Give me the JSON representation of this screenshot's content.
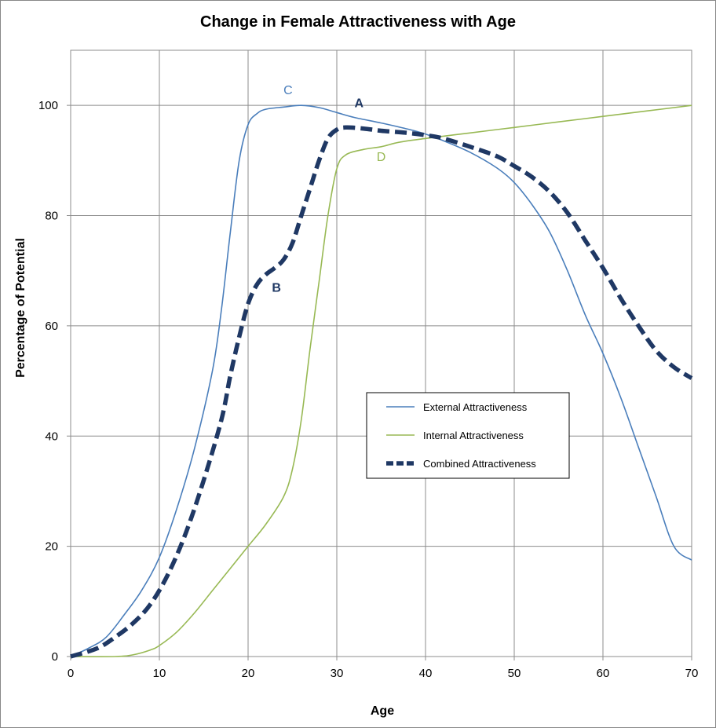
{
  "chart_data": {
    "type": "line",
    "title": "Change in Female Attractiveness with Age",
    "xlabel": "Age",
    "ylabel": "Percentage of Potential",
    "xlim": [
      0,
      70
    ],
    "ylim": [
      0,
      110
    ],
    "x_ticks": [
      0,
      10,
      20,
      30,
      40,
      50,
      60,
      70
    ],
    "y_ticks": [
      0,
      20,
      40,
      60,
      80,
      100
    ],
    "grid": true,
    "legend_position": "center-right",
    "series": [
      {
        "name": "External Attractiveness",
        "color": "#4a7ebb",
        "style": "solid",
        "points": [
          [
            0,
            0
          ],
          [
            2,
            1.5
          ],
          [
            4,
            3.5
          ],
          [
            6,
            7.5
          ],
          [
            8,
            12
          ],
          [
            10,
            18
          ],
          [
            12,
            27
          ],
          [
            14,
            38
          ],
          [
            16,
            52
          ],
          [
            17,
            63
          ],
          [
            18,
            77
          ],
          [
            19,
            90
          ],
          [
            20,
            96.5
          ],
          [
            21,
            98.5
          ],
          [
            22,
            99.3
          ],
          [
            24,
            99.7
          ],
          [
            26,
            100
          ],
          [
            28,
            99.6
          ],
          [
            30,
            98.7
          ],
          [
            32,
            97.8
          ],
          [
            35,
            96.8
          ],
          [
            38,
            95.7
          ],
          [
            40,
            94.8
          ],
          [
            42,
            93.6
          ],
          [
            45,
            91.5
          ],
          [
            48,
            88.7
          ],
          [
            50,
            86
          ],
          [
            52,
            82
          ],
          [
            54,
            77
          ],
          [
            56,
            70
          ],
          [
            58,
            62
          ],
          [
            60,
            55
          ],
          [
            62,
            47
          ],
          [
            64,
            38
          ],
          [
            66,
            29
          ],
          [
            68,
            20
          ],
          [
            70,
            17.5
          ]
        ]
      },
      {
        "name": "Internal Attractiveness",
        "color": "#98b954",
        "style": "solid",
        "points": [
          [
            0,
            0
          ],
          [
            5,
            0
          ],
          [
            7,
            0.3
          ],
          [
            9,
            1.2
          ],
          [
            10,
            2
          ],
          [
            12,
            4.5
          ],
          [
            14,
            8
          ],
          [
            16,
            12
          ],
          [
            18,
            16
          ],
          [
            20,
            20
          ],
          [
            22,
            24
          ],
          [
            24,
            29
          ],
          [
            25,
            34
          ],
          [
            26,
            43
          ],
          [
            27,
            56
          ],
          [
            28,
            68
          ],
          [
            29,
            80
          ],
          [
            30,
            88.5
          ],
          [
            31,
            91
          ],
          [
            33,
            92
          ],
          [
            35,
            92.5
          ],
          [
            37,
            93.3
          ],
          [
            40,
            94
          ],
          [
            45,
            95
          ],
          [
            50,
            96
          ],
          [
            55,
            97
          ],
          [
            60,
            98
          ],
          [
            65,
            99
          ],
          [
            70,
            100
          ]
        ]
      },
      {
        "name": "Combined Attractiveness",
        "color": "#1f3864",
        "style": "dashed",
        "points": [
          [
            0,
            0
          ],
          [
            3,
            1.5
          ],
          [
            5,
            3.5
          ],
          [
            7,
            6
          ],
          [
            9,
            9.5
          ],
          [
            11,
            15
          ],
          [
            13,
            22.5
          ],
          [
            15,
            32
          ],
          [
            17,
            43
          ],
          [
            18,
            51
          ],
          [
            19,
            58
          ],
          [
            20,
            64
          ],
          [
            21,
            67.5
          ],
          [
            22,
            69.3
          ],
          [
            23,
            70.5
          ],
          [
            24,
            72
          ],
          [
            25,
            75
          ],
          [
            26,
            80
          ],
          [
            27,
            85
          ],
          [
            28,
            90
          ],
          [
            29,
            94
          ],
          [
            30,
            95.6
          ],
          [
            31,
            96
          ],
          [
            33,
            95.8
          ],
          [
            35,
            95.4
          ],
          [
            38,
            95
          ],
          [
            40,
            94.6
          ],
          [
            42,
            94
          ],
          [
            45,
            92.5
          ],
          [
            48,
            90.8
          ],
          [
            50,
            89
          ],
          [
            52,
            87
          ],
          [
            54,
            84.3
          ],
          [
            56,
            80.5
          ],
          [
            58,
            75.5
          ],
          [
            60,
            70.5
          ],
          [
            62,
            65
          ],
          [
            64,
            60
          ],
          [
            66,
            55.5
          ],
          [
            68,
            52.5
          ],
          [
            70,
            50.5
          ]
        ]
      }
    ],
    "annotations": [
      {
        "text": "C",
        "x": 24.5,
        "y": 102,
        "color": "#4a7ebb",
        "bold": false
      },
      {
        "text": "A",
        "x": 32.5,
        "y": 99.7,
        "color": "#1f3864",
        "bold": true
      },
      {
        "text": "B",
        "x": 23.2,
        "y": 66.2,
        "color": "#1f3864",
        "bold": true
      },
      {
        "text": "D",
        "x": 35,
        "y": 89.9,
        "color": "#98b954",
        "bold": false
      }
    ]
  }
}
